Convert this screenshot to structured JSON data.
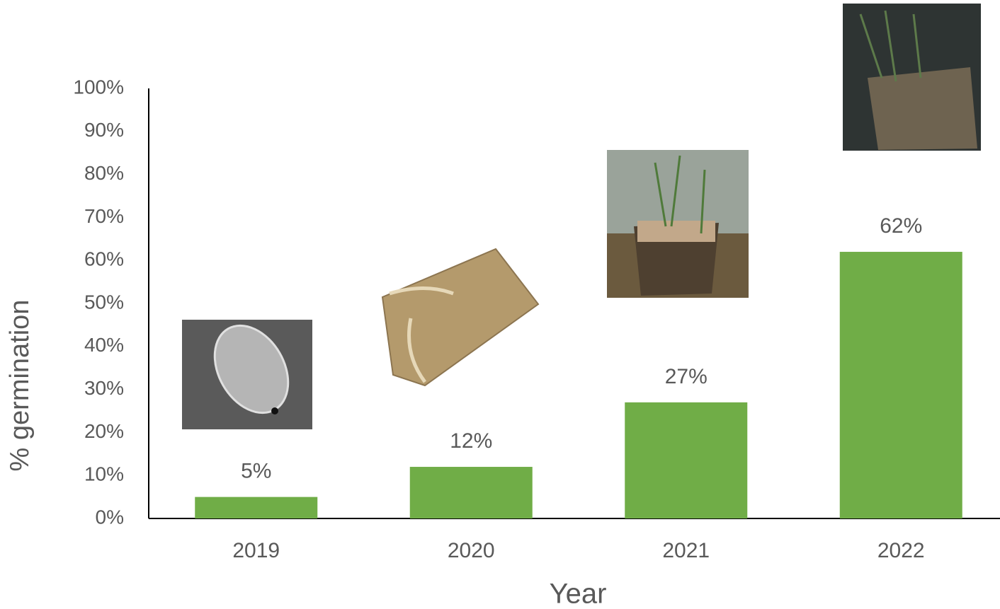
{
  "chart_data": {
    "type": "bar",
    "x_label": "Year",
    "y_label": "% germination",
    "categories": [
      "2019",
      "2020",
      "2021",
      "2022"
    ],
    "values": [
      5,
      12,
      27,
      62
    ],
    "value_labels": [
      "5%",
      "12%",
      "27%",
      "62%"
    ],
    "color": "#70ad47",
    "ylim": [
      0,
      100
    ],
    "yticks": [
      {
        "value": 0,
        "label": "0%"
      },
      {
        "value": 10,
        "label": "10%"
      },
      {
        "value": 20,
        "label": "20%"
      },
      {
        "value": 30,
        "label": "30%"
      },
      {
        "value": 40,
        "label": "40%"
      },
      {
        "value": 50,
        "label": "50%"
      },
      {
        "value": 60,
        "label": "60%"
      },
      {
        "value": 70,
        "label": "70%"
      },
      {
        "value": 80,
        "label": "80%"
      },
      {
        "value": 90,
        "label": "90%"
      },
      {
        "value": 100,
        "label": "100%"
      }
    ],
    "grid": false
  }
}
